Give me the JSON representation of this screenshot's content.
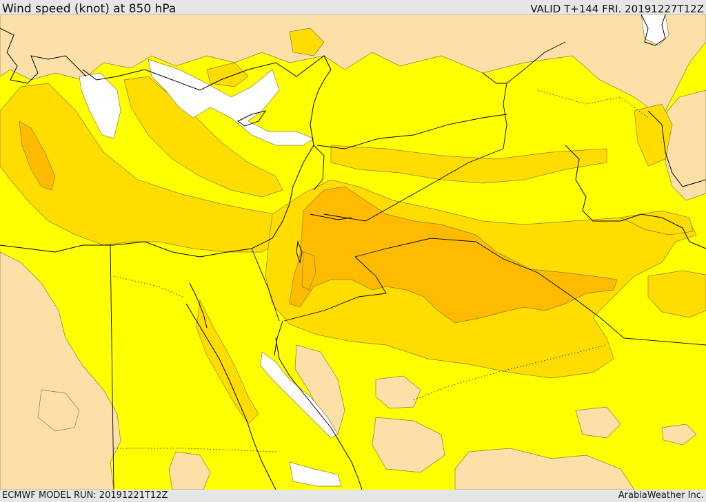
{
  "header": {
    "title": "Wind speed (knot) at 850 hPa",
    "valid": "VALID T+144 FRI. 20191227T12Z"
  },
  "footer": {
    "model_run": "ECMWF MODEL RUN: 20191221T12Z",
    "credit": "ArabiaWeather Inc."
  },
  "map": {
    "variable": "wind speed",
    "level": "850 hPa",
    "unit": "knot",
    "fill_colors": {
      "calm": "#ffffff",
      "light": "#fde0a8",
      "moderate": "#ffff00",
      "fresh": "#ffdd00",
      "strong": "#ffbb00"
    },
    "contour_color": "#8a7a40",
    "border_color": "#000000"
  }
}
